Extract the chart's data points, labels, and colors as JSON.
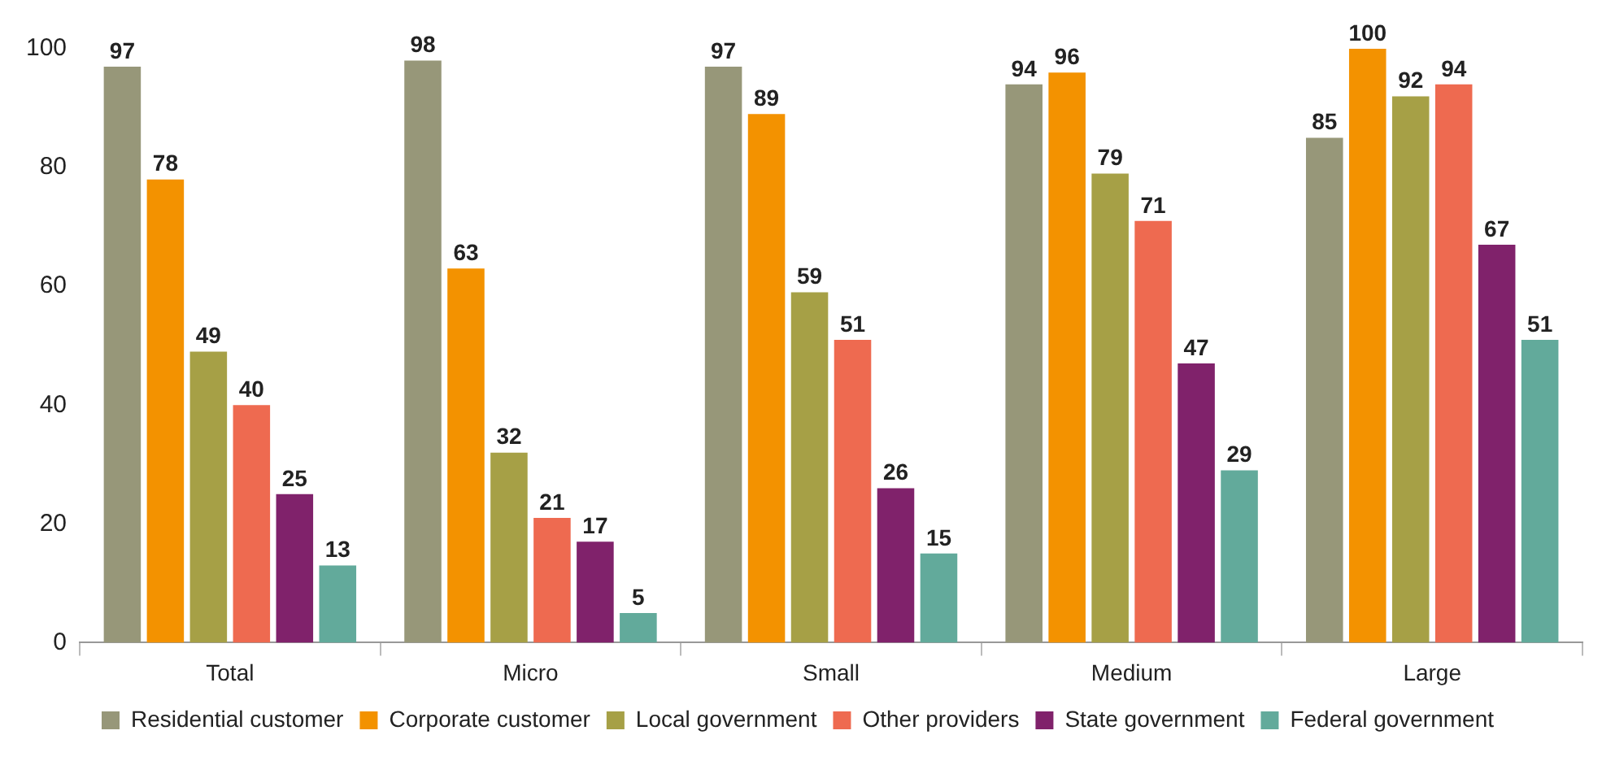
{
  "chart_data": {
    "type": "bar",
    "categories": [
      "Total",
      "Micro",
      "Small",
      "Medium",
      "Large"
    ],
    "series": [
      {
        "name": "Residential customer",
        "color": "#979779",
        "values": [
          97,
          98,
          97,
          94,
          85
        ]
      },
      {
        "name": "Corporate customer",
        "color": "#f39200",
        "values": [
          78,
          63,
          89,
          96,
          100
        ]
      },
      {
        "name": "Local government",
        "color": "#a6a046",
        "values": [
          49,
          32,
          59,
          79,
          92
        ]
      },
      {
        "name": "Other providers",
        "color": "#ee6a50",
        "values": [
          40,
          21,
          51,
          71,
          94
        ]
      },
      {
        "name": "State government",
        "color": "#80226b",
        "values": [
          25,
          17,
          26,
          47,
          67
        ]
      },
      {
        "name": "Federal government",
        "color": "#62aa9b",
        "values": [
          13,
          5,
          15,
          29,
          51
        ]
      }
    ],
    "ylim": [
      0,
      100
    ],
    "yticks": [
      0,
      20,
      40,
      60,
      80,
      100
    ],
    "grid": false,
    "legend": "bottom",
    "data_labels": true
  }
}
